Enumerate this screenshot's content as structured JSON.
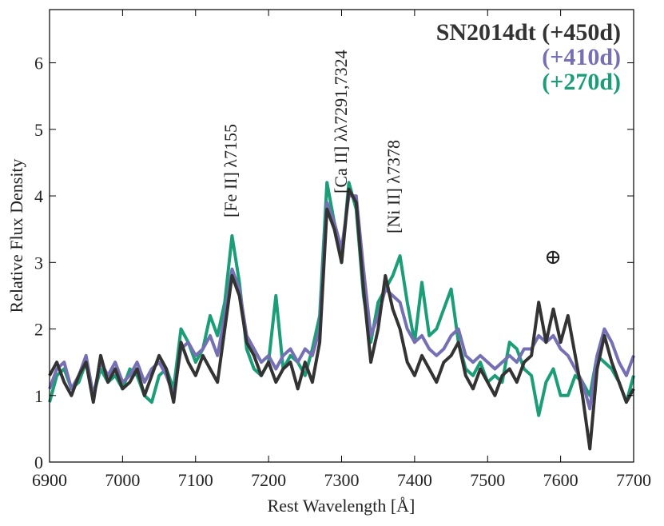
{
  "chart_data": {
    "type": "line",
    "xlabel": "Rest Wavelength [Å]",
    "ylabel": "Relative Flux Density",
    "x": [
      6900,
      6910,
      6920,
      6930,
      6940,
      6950,
      6960,
      6970,
      6980,
      6990,
      7000,
      7010,
      7020,
      7030,
      7040,
      7050,
      7060,
      7070,
      7080,
      7090,
      7100,
      7110,
      7120,
      7130,
      7140,
      7150,
      7160,
      7170,
      7180,
      7190,
      7200,
      7210,
      7220,
      7230,
      7240,
      7250,
      7260,
      7270,
      7280,
      7290,
      7300,
      7310,
      7320,
      7330,
      7340,
      7350,
      7360,
      7370,
      7380,
      7390,
      7400,
      7410,
      7420,
      7430,
      7440,
      7450,
      7460,
      7470,
      7480,
      7490,
      7500,
      7510,
      7520,
      7530,
      7540,
      7550,
      7560,
      7570,
      7580,
      7590,
      7600,
      7610,
      7620,
      7630,
      7640,
      7650,
      7660,
      7670,
      7680,
      7690,
      7700
    ],
    "series": [
      {
        "name": "SN2014dt (+450d)",
        "color": "#333333",
        "values": [
          1.3,
          1.5,
          1.2,
          1.0,
          1.3,
          1.5,
          0.9,
          1.6,
          1.2,
          1.4,
          1.1,
          1.2,
          1.4,
          1.0,
          1.3,
          1.6,
          1.4,
          0.9,
          1.8,
          1.5,
          1.3,
          1.6,
          1.4,
          1.2,
          2.0,
          2.8,
          2.5,
          1.8,
          1.6,
          1.3,
          1.5,
          1.2,
          1.4,
          1.5,
          1.1,
          1.5,
          1.2,
          1.8,
          3.8,
          3.5,
          3.0,
          4.1,
          3.9,
          2.6,
          1.5,
          2.0,
          2.8,
          2.3,
          2.0,
          1.5,
          1.3,
          1.6,
          1.4,
          1.2,
          1.5,
          1.6,
          1.8,
          1.3,
          1.1,
          1.4,
          1.2,
          1.0,
          1.3,
          1.4,
          1.2,
          1.5,
          1.6,
          2.4,
          1.8,
          2.3,
          1.8,
          2.2,
          1.6,
          1.0,
          0.2,
          1.4,
          1.9,
          1.5,
          1.2,
          0.9,
          1.1
        ]
      },
      {
        "name": "(+410d)",
        "color": "#7570b3",
        "values": [
          1.1,
          1.4,
          1.5,
          1.1,
          1.3,
          1.6,
          1.0,
          1.5,
          1.3,
          1.5,
          1.2,
          1.3,
          1.5,
          1.2,
          1.4,
          1.5,
          1.3,
          1.0,
          1.7,
          1.8,
          1.6,
          1.7,
          1.9,
          1.6,
          2.2,
          2.9,
          2.6,
          1.9,
          1.7,
          1.5,
          1.6,
          1.4,
          1.6,
          1.7,
          1.5,
          1.7,
          1.6,
          2.0,
          3.9,
          3.6,
          3.2,
          4.0,
          4.0,
          2.9,
          1.9,
          2.2,
          2.6,
          2.5,
          2.4,
          2.0,
          1.8,
          1.9,
          1.7,
          1.6,
          1.7,
          1.9,
          2.0,
          1.6,
          1.5,
          1.6,
          1.5,
          1.4,
          1.5,
          1.6,
          1.5,
          1.7,
          1.7,
          1.9,
          1.8,
          1.9,
          1.7,
          1.6,
          1.4,
          1.2,
          0.8,
          1.6,
          2.0,
          1.8,
          1.5,
          1.3,
          1.6
        ]
      },
      {
        "name": "(+270d)",
        "color": "#1b9e77",
        "values": [
          0.9,
          1.3,
          1.4,
          1.1,
          1.2,
          1.5,
          1.0,
          1.4,
          1.2,
          1.3,
          1.1,
          1.4,
          1.3,
          1.0,
          0.9,
          1.3,
          1.4,
          1.1,
          2.0,
          1.8,
          1.5,
          1.7,
          2.2,
          1.9,
          2.4,
          3.4,
          2.7,
          1.7,
          1.4,
          1.3,
          1.5,
          2.5,
          1.4,
          1.6,
          1.5,
          1.3,
          1.7,
          2.2,
          4.2,
          3.6,
          3.0,
          4.2,
          3.8,
          2.5,
          1.8,
          2.4,
          2.6,
          2.8,
          3.1,
          2.4,
          1.8,
          2.7,
          1.9,
          2.0,
          2.3,
          2.6,
          1.8,
          1.4,
          1.3,
          1.5,
          1.2,
          1.3,
          1.2,
          1.8,
          1.7,
          1.4,
          1.3,
          0.7,
          1.2,
          1.4,
          1.0,
          1.0,
          1.3,
          1.2,
          1.0,
          1.6,
          1.5,
          1.4,
          1.2,
          0.9,
          1.3
        ]
      }
    ],
    "annotations": [
      "[Fe II] λ7155",
      "[Ca II] λλ7291,7324",
      "[Ni II] λ7378",
      "⊕"
    ],
    "xlim": [
      6900,
      7700
    ],
    "xticks": [
      6900,
      7000,
      7100,
      7200,
      7300,
      7400,
      7500,
      7600,
      7700
    ],
    "ylim": [
      0,
      6.8
    ],
    "yticks": [
      0,
      1,
      2,
      3,
      4,
      5,
      6
    ],
    "legend": "upper right"
  }
}
